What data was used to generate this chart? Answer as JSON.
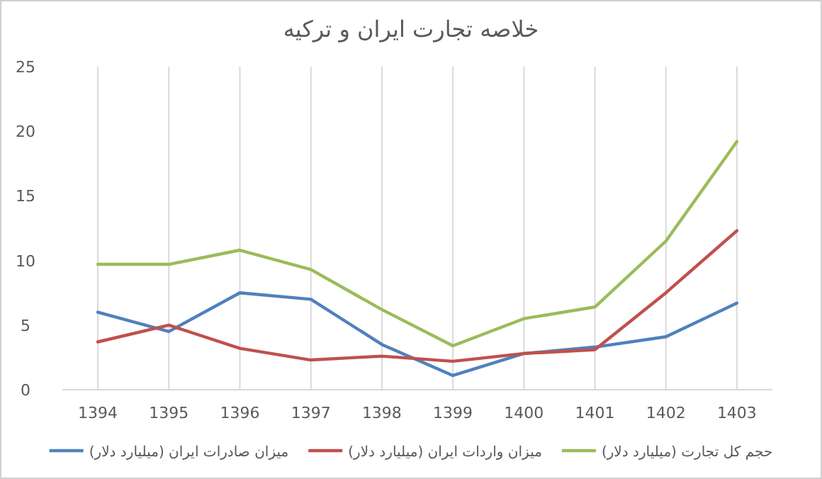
{
  "chart_data": {
    "type": "line",
    "title": "خلاصه تجارت ایران و ترکیه",
    "categories": [
      "1394",
      "1395",
      "1396",
      "1397",
      "1398",
      "1399",
      "1400",
      "1401",
      "1402",
      "1403"
    ],
    "series": [
      {
        "name": "میزان صادرات ایران (میلیارد دلار)",
        "color": "#4f81bd",
        "values": [
          6.0,
          4.5,
          7.5,
          7.0,
          3.5,
          1.1,
          2.8,
          3.3,
          4.1,
          6.7
        ]
      },
      {
        "name": "میزان واردات ایران (میلیارد دلار)",
        "color": "#c0504d",
        "values": [
          3.7,
          5.0,
          3.2,
          2.3,
          2.6,
          2.2,
          2.8,
          3.1,
          7.5,
          12.3
        ]
      },
      {
        "name": "حجم کل تجارت (میلیارد دلار)",
        "color": "#9bbb59",
        "values": [
          9.7,
          9.7,
          10.8,
          9.3,
          6.2,
          3.4,
          5.5,
          6.4,
          11.5,
          19.2
        ]
      }
    ],
    "ylim": [
      0,
      25
    ],
    "yticks": [
      0,
      5,
      10,
      15,
      20,
      25
    ],
    "grid": "x",
    "legend": "bottom",
    "marker": "none",
    "line_style": "solid"
  }
}
